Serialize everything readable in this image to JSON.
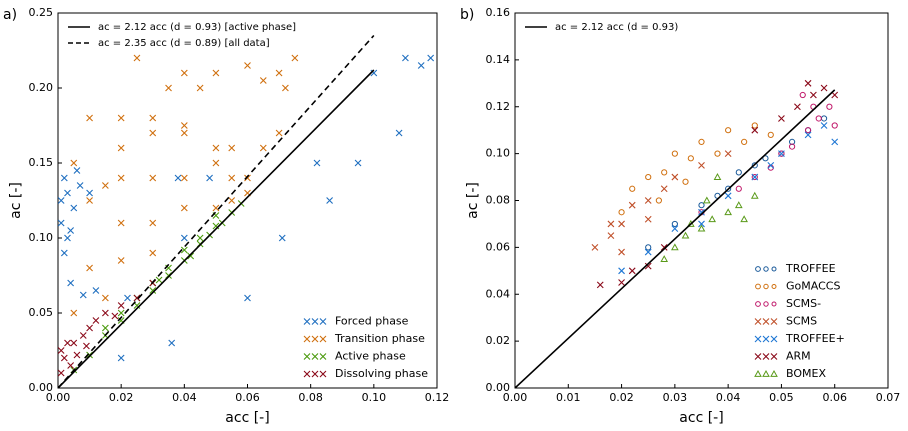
{
  "chart_data": [
    {
      "type": "scatter",
      "panel": "a)",
      "xlabel": "acc [-]",
      "ylabel": "ac [-]",
      "xlim": [
        0,
        0.12
      ],
      "xticks": [
        {
          "value": 0,
          "label": "0.00"
        },
        0.02,
        0.04,
        0.06,
        0.08,
        {
          "value": 0.1,
          "label": "0.10"
        },
        0.12
      ],
      "ylim": [
        0,
        0.25
      ],
      "yticks": [
        {
          "value": 0,
          "label": "0.00"
        },
        0.05,
        {
          "value": 0.1,
          "label": "0.10"
        },
        0.15,
        {
          "value": 0.2,
          "label": "0.20"
        },
        0.25
      ],
      "legend": "lower right",
      "line_legend": "upper left",
      "series": [
        {
          "name": "Forced phase",
          "color": "#1f6fc0",
          "marker": "x",
          "x": [
            0.002,
            0.006,
            0.003,
            0.001,
            0.002,
            0.004,
            0.008,
            0.012,
            0.01,
            0.003,
            0.005,
            0.001,
            0.004,
            0.007,
            0.1,
            0.11,
            0.095,
            0.086,
            0.071,
            0.048,
            0.038,
            0.036,
            0.02,
            0.022,
            0.04,
            0.06,
            0.108,
            0.118,
            0.082,
            0.115
          ],
          "y": [
            0.14,
            0.145,
            0.13,
            0.11,
            0.09,
            0.07,
            0.062,
            0.065,
            0.13,
            0.1,
            0.12,
            0.125,
            0.105,
            0.135,
            0.21,
            0.22,
            0.15,
            0.125,
            0.1,
            0.14,
            0.14,
            0.03,
            0.02,
            0.06,
            0.1,
            0.06,
            0.17,
            0.22,
            0.15,
            0.215
          ]
        },
        {
          "name": "Transition phase",
          "color": "#d0700f",
          "marker": "x",
          "x": [
            0.005,
            0.01,
            0.02,
            0.03,
            0.04,
            0.05,
            0.055,
            0.06,
            0.02,
            0.03,
            0.04,
            0.045,
            0.05,
            0.06,
            0.07,
            0.075,
            0.035,
            0.025,
            0.04,
            0.01,
            0.015,
            0.02,
            0.03,
            0.04,
            0.05,
            0.055,
            0.02,
            0.03,
            0.04,
            0.05,
            0.01,
            0.02,
            0.03,
            0.005,
            0.015,
            0.055,
            0.06,
            0.065,
            0.07,
            0.072,
            0.065
          ],
          "y": [
            0.15,
            0.18,
            0.18,
            0.18,
            0.175,
            0.16,
            0.16,
            0.13,
            0.16,
            0.17,
            0.17,
            0.2,
            0.21,
            0.215,
            0.21,
            0.22,
            0.2,
            0.22,
            0.21,
            0.125,
            0.135,
            0.14,
            0.14,
            0.14,
            0.15,
            0.14,
            0.11,
            0.11,
            0.12,
            0.12,
            0.08,
            0.085,
            0.09,
            0.05,
            0.06,
            0.125,
            0.14,
            0.16,
            0.17,
            0.2,
            0.205
          ]
        },
        {
          "name": "Active phase",
          "color": "#4a9a0c",
          "marker": "x",
          "x": [
            0.005,
            0.01,
            0.015,
            0.02,
            0.025,
            0.03,
            0.035,
            0.04,
            0.045,
            0.05,
            0.055,
            0.058,
            0.02,
            0.03,
            0.04,
            0.045,
            0.05,
            0.035,
            0.025,
            0.015,
            0.052,
            0.042,
            0.032,
            0.048
          ],
          "y": [
            0.012,
            0.022,
            0.035,
            0.045,
            0.055,
            0.065,
            0.075,
            0.085,
            0.096,
            0.108,
            0.117,
            0.123,
            0.05,
            0.07,
            0.092,
            0.1,
            0.115,
            0.08,
            0.06,
            0.04,
            0.11,
            0.088,
            0.072,
            0.102
          ]
        },
        {
          "name": "Dissolving phase",
          "color": "#8b0a1a",
          "marker": "x",
          "x": [
            0.001,
            0.002,
            0.003,
            0.001,
            0.005,
            0.008,
            0.01,
            0.012,
            0.015,
            0.02,
            0.025,
            0.03,
            0.018,
            0.006,
            0.004,
            0.009
          ],
          "y": [
            0.01,
            0.02,
            0.03,
            0.025,
            0.03,
            0.035,
            0.04,
            0.045,
            0.05,
            0.055,
            0.06,
            0.07,
            0.048,
            0.022,
            0.015,
            0.028
          ]
        }
      ],
      "lines": [
        {
          "name": "ac = 2.12 acc   (d = 0.93) [active phase]",
          "dash": false,
          "x": [
            0,
            0.1
          ],
          "y": [
            0,
            0.212
          ]
        },
        {
          "name": "ac = 2.35 acc   (d = 0.89) [all data]",
          "dash": true,
          "x": [
            0,
            0.1
          ],
          "y": [
            0,
            0.235
          ]
        }
      ]
    },
    {
      "type": "scatter",
      "panel": "b)",
      "xlabel": "acc [-]",
      "ylabel": "ac [-]",
      "xlim": [
        0,
        0.07
      ],
      "xticks": [
        {
          "value": 0,
          "label": "0.00"
        },
        0.01,
        0.02,
        0.03,
        0.04,
        0.05,
        0.06,
        0.07
      ],
      "ylim": [
        0,
        0.16
      ],
      "yticks": [
        {
          "value": 0,
          "label": "0.00"
        },
        0.02,
        0.04,
        0.06,
        0.08,
        {
          "value": 0.1,
          "label": "0.10"
        },
        0.12,
        0.14,
        0.16
      ],
      "legend": "lower right",
      "line_legend": "upper left",
      "series": [
        {
          "name": "TROFFEE",
          "color": "#1a5a9a",
          "marker": "o",
          "x": [
            0.03,
            0.035,
            0.04,
            0.045,
            0.05,
            0.055,
            0.058,
            0.025,
            0.042,
            0.052,
            0.047,
            0.038
          ],
          "y": [
            0.07,
            0.078,
            0.085,
            0.095,
            0.1,
            0.11,
            0.115,
            0.06,
            0.092,
            0.105,
            0.098,
            0.082
          ]
        },
        {
          "name": "GoMACCS",
          "color": "#d0700f",
          "marker": "o",
          "x": [
            0.02,
            0.022,
            0.025,
            0.028,
            0.03,
            0.033,
            0.035,
            0.038,
            0.04,
            0.043,
            0.045,
            0.048,
            0.027,
            0.032
          ],
          "y": [
            0.075,
            0.085,
            0.09,
            0.092,
            0.1,
            0.098,
            0.105,
            0.1,
            0.11,
            0.105,
            0.112,
            0.108,
            0.08,
            0.088
          ]
        },
        {
          "name": "SCMS-",
          "color": "#c0186a",
          "marker": "o",
          "x": [
            0.045,
            0.048,
            0.05,
            0.052,
            0.055,
            0.057,
            0.059,
            0.054,
            0.056,
            0.06,
            0.042,
            0.035
          ],
          "y": [
            0.09,
            0.094,
            0.1,
            0.103,
            0.11,
            0.115,
            0.12,
            0.125,
            0.12,
            0.112,
            0.085,
            0.075
          ]
        },
        {
          "name": "SCMS",
          "color": "#c0502a",
          "marker": "x",
          "x": [
            0.015,
            0.018,
            0.02,
            0.022,
            0.025,
            0.028,
            0.03,
            0.02,
            0.025,
            0.035,
            0.04,
            0.018
          ],
          "y": [
            0.06,
            0.065,
            0.07,
            0.078,
            0.08,
            0.085,
            0.09,
            0.058,
            0.072,
            0.095,
            0.1,
            0.07
          ]
        },
        {
          "name": "TROFFEE+",
          "color": "#1f77d4",
          "marker": "x",
          "x": [
            0.02,
            0.025,
            0.03,
            0.035,
            0.04,
            0.045,
            0.05,
            0.055,
            0.058,
            0.06,
            0.035,
            0.048
          ],
          "y": [
            0.05,
            0.058,
            0.068,
            0.075,
            0.082,
            0.09,
            0.1,
            0.108,
            0.112,
            0.105,
            0.07,
            0.095
          ]
        },
        {
          "name": "ARM",
          "color": "#8b0a1a",
          "marker": "x",
          "x": [
            0.016,
            0.02,
            0.022,
            0.025,
            0.028,
            0.05,
            0.053,
            0.056,
            0.058,
            0.06,
            0.045,
            0.055
          ],
          "y": [
            0.044,
            0.045,
            0.05,
            0.052,
            0.06,
            0.115,
            0.12,
            0.125,
            0.128,
            0.125,
            0.11,
            0.13
          ]
        },
        {
          "name": "BOMEX",
          "color": "#5a9a1a",
          "marker": "^",
          "x": [
            0.028,
            0.03,
            0.032,
            0.035,
            0.037,
            0.04,
            0.042,
            0.045,
            0.038,
            0.033,
            0.043,
            0.036
          ],
          "y": [
            0.055,
            0.06,
            0.065,
            0.068,
            0.072,
            0.075,
            0.078,
            0.082,
            0.09,
            0.07,
            0.072,
            0.08
          ]
        }
      ],
      "lines": [
        {
          "name": "ac = 2.12 acc   (d = 0.93)",
          "dash": false,
          "x": [
            0,
            0.06
          ],
          "y": [
            0,
            0.1272
          ]
        }
      ]
    }
  ]
}
